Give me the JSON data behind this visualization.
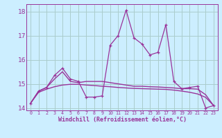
{
  "xlabel": "Windchill (Refroidissement éolien,°C)",
  "background_color": "#cceeff",
  "grid_color": "#aacccc",
  "line_color": "#993399",
  "x_hours": [
    0,
    1,
    2,
    3,
    4,
    5,
    6,
    7,
    8,
    9,
    10,
    11,
    12,
    13,
    14,
    15,
    16,
    17,
    18,
    19,
    20,
    21,
    22,
    23
  ],
  "y_main": [
    14.2,
    14.7,
    14.85,
    15.35,
    15.65,
    15.2,
    15.1,
    14.45,
    14.45,
    14.5,
    16.6,
    17.0,
    18.05,
    16.9,
    16.65,
    16.2,
    16.3,
    17.45,
    15.1,
    14.8,
    14.85,
    14.9,
    14.0,
    14.1
  ],
  "y_trend1": [
    14.2,
    14.7,
    14.85,
    15.2,
    15.5,
    15.1,
    15.05,
    15.1,
    15.1,
    15.1,
    15.05,
    15.0,
    14.95,
    14.9,
    14.9,
    14.88,
    14.87,
    14.85,
    14.83,
    14.8,
    14.8,
    14.78,
    14.55,
    14.1
  ],
  "y_trend2": [
    14.2,
    14.65,
    14.78,
    14.88,
    14.95,
    14.98,
    14.98,
    14.95,
    14.93,
    14.9,
    14.88,
    14.85,
    14.83,
    14.81,
    14.8,
    14.79,
    14.78,
    14.77,
    14.74,
    14.7,
    14.65,
    14.58,
    14.44,
    14.1
  ],
  "ylim": [
    13.9,
    18.3
  ],
  "yticks": [
    14,
    15,
    16,
    17,
    18
  ],
  "xtick_labels": [
    "0",
    "1",
    "2",
    "3",
    "4",
    "5",
    "6",
    "7",
    "8",
    "9",
    "10",
    "11",
    "12",
    "13",
    "14",
    "15",
    "16",
    "17",
    "18",
    "19",
    "20",
    "21",
    "22",
    "23"
  ]
}
